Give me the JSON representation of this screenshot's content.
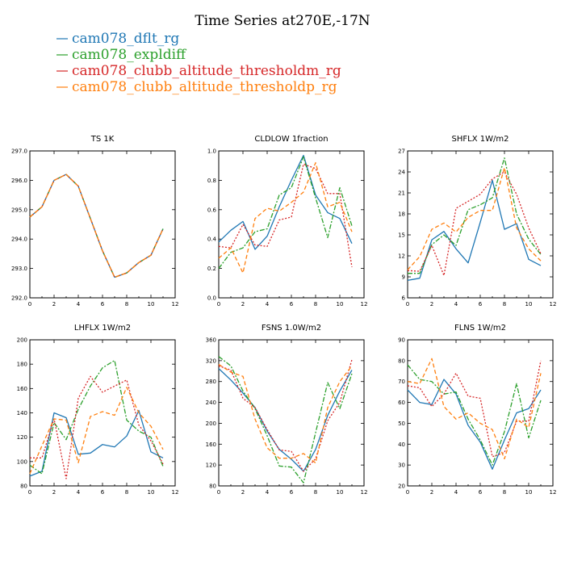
{
  "figure": {
    "title": "Time Series at270E,-17N"
  },
  "legend": [
    {
      "label": "cam078_dflt_rg",
      "color": "#1f77b4",
      "dash": "solid"
    },
    {
      "label": "cam078_expldiff",
      "color": "#2ca02c",
      "dash": "dashdot"
    },
    {
      "label": "cam078_clubb_altitude_thresholdm_rg",
      "color": "#d62728",
      "dash": "dotted"
    },
    {
      "label": "cam078_clubb_altitude_thresholdp_rg",
      "color": "#ff7f0e",
      "dash": "dashed"
    }
  ],
  "chart_data": [
    {
      "type": "line",
      "title": "TS  1K",
      "xlim": [
        0,
        12
      ],
      "ylim": [
        292.0,
        297.0
      ],
      "xticks": [
        0,
        2,
        4,
        6,
        8,
        10,
        12
      ],
      "yticks": [
        292.0,
        293.0,
        294.0,
        295.0,
        296.0,
        297.0
      ],
      "ytick_labels": [
        "292.0",
        "293.0",
        "294.0",
        "295.0",
        "296.0",
        "297.0"
      ],
      "x": [
        0,
        1,
        2,
        3,
        4,
        5,
        6,
        7,
        8,
        9,
        10,
        11
      ],
      "series": [
        {
          "name": "cam078_dflt_rg",
          "values": [
            294.75,
            295.1,
            296.0,
            296.2,
            295.8,
            294.7,
            293.6,
            292.7,
            292.85,
            293.2,
            293.45,
            294.35
          ]
        },
        {
          "name": "cam078_expldiff",
          "values": [
            294.75,
            295.1,
            296.0,
            296.2,
            295.8,
            294.7,
            293.6,
            292.7,
            292.85,
            293.2,
            293.45,
            294.35
          ]
        },
        {
          "name": "cam078_clubb_altitude_thresholdm_rg",
          "values": [
            294.75,
            295.1,
            296.0,
            296.2,
            295.8,
            294.7,
            293.6,
            292.7,
            292.85,
            293.2,
            293.45,
            294.35
          ]
        },
        {
          "name": "cam078_clubb_altitude_thresholdp_rg",
          "values": [
            294.75,
            295.1,
            296.0,
            296.2,
            295.8,
            294.7,
            293.6,
            292.7,
            292.85,
            293.2,
            293.45,
            294.35
          ]
        }
      ]
    },
    {
      "type": "line",
      "title": "CLDLOW   1fraction",
      "xlim": [
        0,
        12
      ],
      "ylim": [
        0.0,
        1.0
      ],
      "xticks": [
        0,
        2,
        4,
        6,
        8,
        10,
        12
      ],
      "yticks": [
        0.0,
        0.2,
        0.4,
        0.6,
        0.8,
        1.0
      ],
      "ytick_labels": [
        "0.0",
        "0.2",
        "0.4",
        "0.6",
        "0.8",
        "1.0"
      ],
      "x": [
        0,
        1,
        2,
        3,
        4,
        5,
        6,
        7,
        8,
        9,
        10,
        11
      ],
      "series": [
        {
          "name": "cam078_dflt_rg",
          "values": [
            0.38,
            0.46,
            0.52,
            0.33,
            0.42,
            0.62,
            0.8,
            0.97,
            0.7,
            0.58,
            0.54,
            0.37
          ]
        },
        {
          "name": "cam078_expldiff",
          "values": [
            0.2,
            0.31,
            0.34,
            0.45,
            0.47,
            0.7,
            0.75,
            0.96,
            0.68,
            0.41,
            0.75,
            0.49
          ]
        },
        {
          "name": "cam078_clubb_altitude_thresholdm_rg",
          "values": [
            0.35,
            0.34,
            0.5,
            0.36,
            0.35,
            0.53,
            0.55,
            0.91,
            0.88,
            0.71,
            0.71,
            0.21
          ]
        },
        {
          "name": "cam078_clubb_altitude_thresholdp_rg",
          "values": [
            0.27,
            0.34,
            0.17,
            0.54,
            0.61,
            0.59,
            0.65,
            0.72,
            0.92,
            0.62,
            0.65,
            0.45
          ]
        }
      ]
    },
    {
      "type": "line",
      "title": "SHFLX   1W/m2",
      "xlim": [
        0,
        12
      ],
      "ylim": [
        6,
        27
      ],
      "xticks": [
        0,
        2,
        4,
        6,
        8,
        10,
        12
      ],
      "yticks": [
        6,
        9,
        12,
        15,
        18,
        21,
        24,
        27
      ],
      "ytick_labels": [
        "6",
        "9",
        "12",
        "15",
        "18",
        "21",
        "24",
        "27"
      ],
      "x": [
        0,
        1,
        2,
        3,
        4,
        5,
        6,
        7,
        8,
        9,
        10,
        11
      ],
      "series": [
        {
          "name": "cam078_dflt_rg",
          "values": [
            8.5,
            8.8,
            14.3,
            15.5,
            13.0,
            11.0,
            16.8,
            22.8,
            15.8,
            16.6,
            11.5,
            10.6
          ]
        },
        {
          "name": "cam078_expldiff",
          "values": [
            9.5,
            9.5,
            13.6,
            15.0,
            13.5,
            18.6,
            19.3,
            20.3,
            26.0,
            18.0,
            14.4,
            12.2
          ]
        },
        {
          "name": "cam078_clubb_altitude_thresholdm_rg",
          "values": [
            9.9,
            9.8,
            13.5,
            9.2,
            18.8,
            19.8,
            20.8,
            23.0,
            24.0,
            20.8,
            16.0,
            12.3
          ]
        },
        {
          "name": "cam078_clubb_altitude_thresholdp_rg",
          "values": [
            10.0,
            11.9,
            15.8,
            16.7,
            15.4,
            17.5,
            18.5,
            18.5,
            24.6,
            16.0,
            13.0,
            11.3
          ]
        }
      ]
    },
    {
      "type": "line",
      "title": "LHFLX   1W/m2",
      "xlim": [
        0,
        12
      ],
      "ylim": [
        80,
        200
      ],
      "xticks": [
        0,
        2,
        4,
        6,
        8,
        10,
        12
      ],
      "yticks": [
        80,
        100,
        120,
        140,
        160,
        180,
        200
      ],
      "ytick_labels": [
        "80",
        "100",
        "120",
        "140",
        "160",
        "180",
        "200"
      ],
      "x": [
        0,
        1,
        2,
        3,
        4,
        5,
        6,
        7,
        8,
        9,
        10,
        11
      ],
      "series": [
        {
          "name": "cam078_dflt_rg",
          "values": [
            88,
            92,
            140,
            136,
            106,
            107,
            114,
            112,
            121,
            142,
            108,
            103
          ]
        },
        {
          "name": "cam078_expldiff",
          "values": [
            97,
            90,
            132,
            118,
            143,
            162,
            177,
            183,
            134,
            125,
            120,
            96
          ]
        },
        {
          "name": "cam078_clubb_altitude_thresholdm_rg",
          "values": [
            103,
            103,
            135,
            86,
            152,
            170,
            157,
            162,
            167,
            130,
            117,
            98
          ]
        },
        {
          "name": "cam078_clubb_altitude_thresholdp_rg",
          "values": [
            90,
            113,
            135,
            134,
            99,
            137,
            141,
            138,
            161,
            140,
            129,
            110
          ]
        }
      ]
    },
    {
      "type": "line",
      "title": "FSNS   1.0W/m2",
      "xlim": [
        0,
        12
      ],
      "ylim": [
        80,
        360
      ],
      "xticks": [
        0,
        2,
        4,
        6,
        8,
        10,
        12
      ],
      "yticks": [
        80,
        120,
        160,
        200,
        240,
        280,
        320,
        360
      ],
      "ytick_labels": [
        "80",
        "120",
        "160",
        "200",
        "240",
        "280",
        "320",
        "360"
      ],
      "x": [
        0,
        1,
        2,
        3,
        4,
        5,
        6,
        7,
        8,
        9,
        10,
        11
      ],
      "series": [
        {
          "name": "cam078_dflt_rg",
          "values": [
            305,
            283,
            258,
            230,
            185,
            150,
            131,
            108,
            150,
            215,
            262,
            302
          ]
        },
        {
          "name": "cam078_expldiff",
          "values": [
            328,
            310,
            262,
            228,
            176,
            118,
            116,
            86,
            182,
            278,
            228,
            295
          ]
        },
        {
          "name": "cam078_clubb_altitude_thresholdm_rg",
          "values": [
            310,
            302,
            248,
            230,
            188,
            149,
            146,
            108,
            132,
            205,
            240,
            322
          ]
        },
        {
          "name": "cam078_clubb_altitude_thresholdp_rg",
          "values": [
            313,
            298,
            290,
            208,
            153,
            133,
            133,
            142,
            124,
            230,
            280,
            310
          ]
        }
      ]
    },
    {
      "type": "line",
      "title": "FLNS   1W/m2",
      "xlim": [
        0,
        12
      ],
      "ylim": [
        20,
        90
      ],
      "xticks": [
        0,
        2,
        4,
        6,
        8,
        10,
        12
      ],
      "yticks": [
        20,
        30,
        40,
        50,
        60,
        70,
        80,
        90
      ],
      "ytick_labels": [
        "20",
        "30",
        "40",
        "50",
        "60",
        "70",
        "80",
        "90"
      ],
      "x": [
        0,
        1,
        2,
        3,
        4,
        5,
        6,
        7,
        8,
        9,
        10,
        11
      ],
      "series": [
        {
          "name": "cam078_dflt_rg",
          "values": [
            66,
            60,
            59,
            71,
            64,
            49,
            41,
            28,
            42,
            55,
            57,
            66
          ]
        },
        {
          "name": "cam078_expldiff",
          "values": [
            78,
            71,
            70,
            64,
            65,
            52,
            42,
            30,
            46,
            69,
            43,
            61
          ]
        },
        {
          "name": "cam078_clubb_altitude_thresholdm_rg",
          "values": [
            68,
            67,
            58,
            64,
            74,
            63,
            62,
            34,
            36,
            51,
            51,
            80
          ]
        },
        {
          "name": "cam078_clubb_altitude_thresholdp_rg",
          "values": [
            70,
            69,
            81,
            58,
            52,
            55,
            50,
            47,
            33,
            52,
            48,
            74
          ]
        }
      ]
    }
  ]
}
